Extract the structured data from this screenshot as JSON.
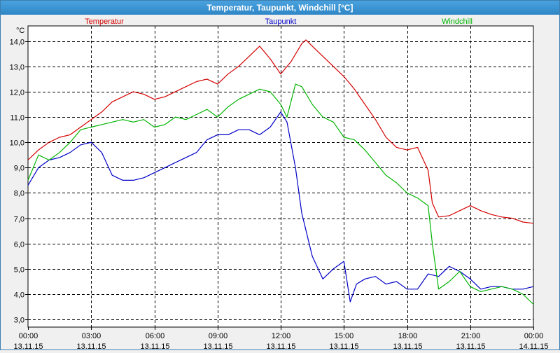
{
  "window": {
    "title": "Temperatur, Taupunkt, Windchill [°C]"
  },
  "colors": {
    "temperatur": "#d40000",
    "taupunkt": "#0000c8",
    "windchill": "#00b400",
    "grid": "#000000"
  },
  "chart_data": {
    "type": "line",
    "title": "Temperatur, Taupunkt, Windchill [°C]",
    "ylabel": "°C",
    "ylim": [
      2.7,
      14.6
    ],
    "yticks": [
      3.0,
      4.0,
      5.0,
      6.0,
      7.0,
      8.0,
      9.0,
      10.0,
      11.0,
      12.0,
      13.0,
      14.0
    ],
    "ytick_labels": [
      "3,0",
      "4,0",
      "5,0",
      "6,0",
      "7,0",
      "8,0",
      "9,0",
      "10,0",
      "11,0",
      "12,0",
      "13,0",
      "14,0"
    ],
    "xlim": [
      0,
      24
    ],
    "xticks": [
      {
        "time": "00:00",
        "date": "13.11.15"
      },
      {
        "time": "03:00",
        "date": "13.11.15"
      },
      {
        "time": "06:00",
        "date": "13.11.15"
      },
      {
        "time": "09:00",
        "date": "13.11.15"
      },
      {
        "time": "12:00",
        "date": "13.11.15"
      },
      {
        "time": "15:00",
        "date": "13.11.15"
      },
      {
        "time": "18:00",
        "date": "13.11.15"
      },
      {
        "time": "21:00",
        "date": "13.11.15"
      },
      {
        "time": "00:00",
        "date": "14.11.15"
      }
    ],
    "grid": true,
    "legend": "top",
    "series": [
      {
        "name": "Temperatur",
        "color": "#d40000",
        "x": [
          0,
          0.5,
          1,
          1.5,
          2,
          2.5,
          3,
          3.5,
          4,
          4.5,
          5,
          5.5,
          6,
          6.5,
          7,
          7.5,
          8,
          8.5,
          9,
          9.5,
          10,
          10.5,
          11,
          11.5,
          12,
          12.5,
          13,
          13.2,
          13.5,
          14,
          14.5,
          15,
          15.5,
          16,
          16.5,
          17,
          17.5,
          18,
          18.5,
          19,
          19.2,
          19.5,
          20,
          20.5,
          21,
          21.5,
          22,
          22.5,
          23,
          23.5,
          24
        ],
        "values": [
          9.3,
          9.7,
          10.0,
          10.2,
          10.3,
          10.6,
          10.9,
          11.2,
          11.6,
          11.8,
          12.0,
          11.9,
          11.7,
          11.8,
          12.0,
          12.2,
          12.4,
          12.5,
          12.3,
          12.7,
          13.0,
          13.4,
          13.8,
          13.3,
          12.7,
          13.2,
          13.9,
          14.05,
          13.8,
          13.4,
          13.0,
          12.6,
          12.1,
          11.5,
          10.9,
          10.2,
          9.8,
          9.7,
          9.8,
          8.9,
          7.6,
          7.05,
          7.1,
          7.3,
          7.5,
          7.3,
          7.15,
          7.05,
          7.0,
          6.85,
          6.8
        ]
      },
      {
        "name": "Taupunkt",
        "color": "#0000c8",
        "x": [
          0,
          0.5,
          1,
          1.5,
          2,
          2.5,
          3,
          3.5,
          4,
          4.5,
          5,
          5.5,
          6,
          6.5,
          7,
          7.5,
          8,
          8.5,
          9,
          9.5,
          10,
          10.5,
          11,
          11.5,
          12,
          12.3,
          12.7,
          13,
          13.5,
          14,
          14.5,
          15,
          15.3,
          15.6,
          16,
          16.5,
          17,
          17.5,
          18,
          18.5,
          19,
          19.5,
          20,
          20.5,
          21,
          21.5,
          22,
          22.5,
          23,
          23.5,
          24
        ],
        "values": [
          8.3,
          9.0,
          9.3,
          9.4,
          9.6,
          9.9,
          10.0,
          9.6,
          8.7,
          8.5,
          8.5,
          8.6,
          8.8,
          9.0,
          9.2,
          9.4,
          9.6,
          10.1,
          10.3,
          10.3,
          10.5,
          10.5,
          10.3,
          10.6,
          11.2,
          10.8,
          9.0,
          7.2,
          5.5,
          4.6,
          5.0,
          5.3,
          3.7,
          4.4,
          4.6,
          4.7,
          4.4,
          4.5,
          4.2,
          4.2,
          4.8,
          4.7,
          5.1,
          4.9,
          4.6,
          4.2,
          4.3,
          4.3,
          4.2,
          4.2,
          4.3
        ]
      },
      {
        "name": "Windchill",
        "color": "#00b400",
        "x": [
          0,
          0.5,
          1,
          1.5,
          2,
          2.5,
          3,
          3.5,
          4,
          4.5,
          5,
          5.5,
          6,
          6.5,
          7,
          7.5,
          8,
          8.5,
          9,
          9.5,
          10,
          10.5,
          11,
          11.5,
          12,
          12.3,
          12.7,
          13,
          13.5,
          14,
          14.5,
          15,
          15.5,
          16,
          16.5,
          17,
          17.5,
          18,
          18.5,
          19,
          19.2,
          19.5,
          20,
          20.5,
          21,
          21.5,
          22,
          22.5,
          23,
          23.5,
          24
        ],
        "values": [
          8.5,
          9.5,
          9.3,
          9.6,
          10.0,
          10.5,
          10.6,
          10.7,
          10.8,
          10.9,
          10.8,
          10.9,
          10.6,
          10.7,
          11.0,
          10.9,
          11.1,
          11.3,
          11.0,
          11.4,
          11.7,
          11.9,
          12.1,
          12.0,
          11.5,
          11.0,
          12.3,
          12.2,
          11.5,
          11.0,
          10.8,
          10.2,
          10.1,
          9.7,
          9.2,
          8.7,
          8.4,
          8.0,
          7.8,
          7.5,
          6.0,
          4.2,
          4.5,
          4.9,
          4.3,
          4.1,
          4.2,
          4.3,
          4.2,
          4.0,
          3.6
        ]
      }
    ]
  }
}
